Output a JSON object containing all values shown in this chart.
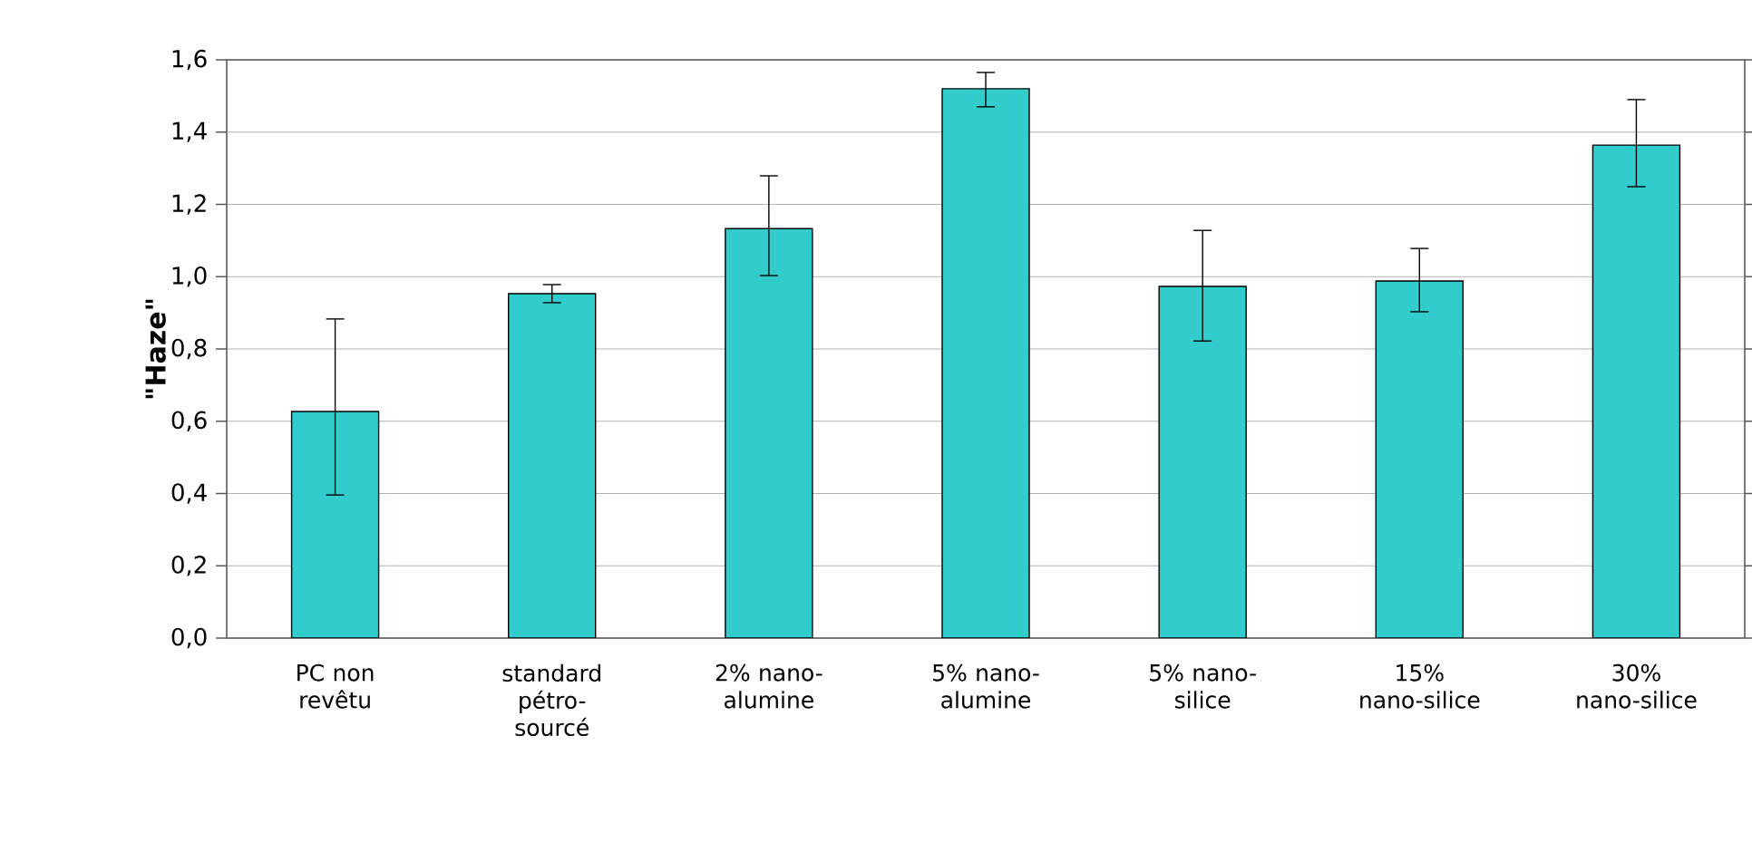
{
  "chart_data": {
    "type": "bar",
    "ylabel": "\"Haze\"",
    "categories": [
      "PC non revêtu",
      "standard pétro-sourcé",
      "2% nano-alumine",
      "5% nano-alumine",
      "5% nano-silice",
      "15% nano-silice",
      "30% nano-silice"
    ],
    "values": [
      0.627,
      0.953,
      1.133,
      1.52,
      0.973,
      0.988,
      1.364
    ],
    "errors": [
      [
        0.396,
        0.883
      ],
      [
        0.928,
        0.978
      ],
      [
        1.003,
        1.279
      ],
      [
        1.47,
        1.565
      ],
      [
        0.822,
        1.128
      ],
      [
        0.903,
        1.078
      ],
      [
        1.249,
        1.49
      ]
    ],
    "color": "#33cccc",
    "ylim": [
      0,
      1.6
    ],
    "yticks": [
      {
        "value": 0,
        "label": "0,0"
      },
      {
        "value": 0.2,
        "label": "0,2"
      },
      {
        "value": 0.4,
        "label": "0,4"
      },
      {
        "value": 0.6,
        "label": "0,6"
      },
      {
        "value": 0.8,
        "label": "0,8"
      },
      {
        "value": 1.0,
        "label": "1,0"
      },
      {
        "value": 1.2,
        "label": "1,2"
      },
      {
        "value": 1.4,
        "label": "1,4"
      },
      {
        "value": 1.6,
        "label": "1,6"
      }
    ],
    "grid": "y"
  }
}
